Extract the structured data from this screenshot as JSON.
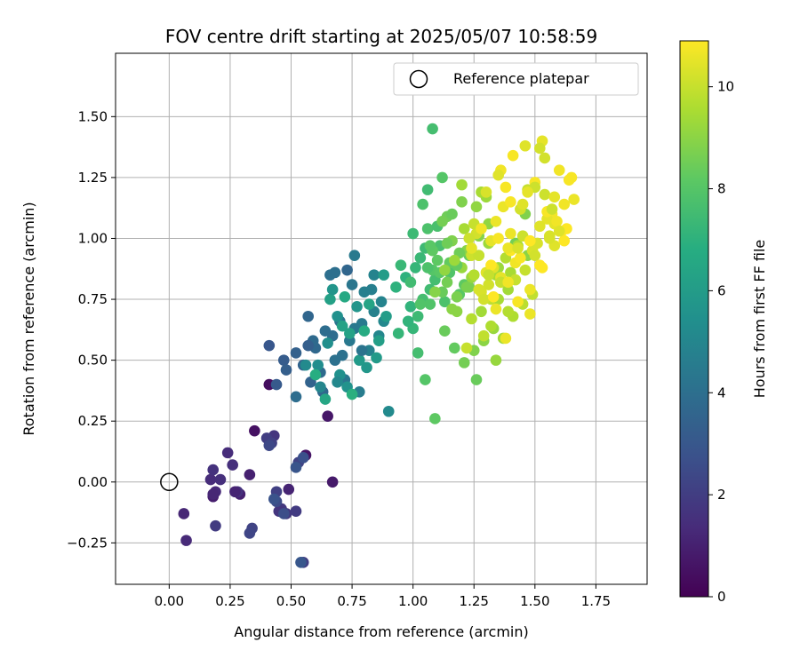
{
  "chart_data": {
    "type": "scatter",
    "title": "FOV centre drift starting at 2025/05/07 10:58:59",
    "xlabel": "Angular distance from reference (arcmin)",
    "ylabel": "Rotation from reference (arcmin)",
    "xlim": [
      -0.22,
      1.96
    ],
    "ylim": [
      -0.42,
      1.76
    ],
    "xticks": [
      0.0,
      0.25,
      0.5,
      0.75,
      1.0,
      1.25,
      1.5,
      1.75
    ],
    "xtick_labels": [
      "0.00",
      "0.25",
      "0.50",
      "0.75",
      "1.00",
      "1.25",
      "1.50",
      "1.75"
    ],
    "yticks": [
      -0.25,
      0.0,
      0.25,
      0.5,
      0.75,
      1.0,
      1.25,
      1.5
    ],
    "ytick_labels": [
      "−0.25",
      "0.00",
      "0.25",
      "0.50",
      "0.75",
      "1.00",
      "1.25",
      "1.50"
    ],
    "grid": true,
    "colormap": "viridis",
    "colorbar": {
      "label": "Hours from first FF file",
      "min": 0,
      "max": 10.9,
      "ticks": [
        0,
        2,
        4,
        6,
        8,
        10
      ],
      "tick_labels": [
        "0",
        "2",
        "4",
        "6",
        "8",
        "10"
      ]
    },
    "legend": {
      "position": "top-right",
      "entries": [
        "Reference platepar"
      ]
    },
    "reference_marker": {
      "x": 0.0,
      "y": 0.0,
      "label": "Reference platepar"
    },
    "series": [
      {
        "x": [
          0.41,
          0.35,
          0.56,
          0.65,
          0.67,
          0.18,
          0.29,
          0.33,
          0.49,
          0.06,
          0.07,
          0.19,
          0.17,
          0.24,
          0.21,
          0.26,
          0.18,
          0.28,
          0.43,
          0.46,
          0.48,
          0.52,
          0.55,
          0.4,
          0.44,
          0.42,
          0.53,
          0.34,
          0.19,
          0.33,
          0.45,
          0.41,
          0.18,
          0.27,
          0.44,
          0.47,
          0.55,
          0.43,
          0.52,
          0.54
        ],
        "y": [
          0.4,
          0.21,
          0.11,
          0.27,
          0.0,
          -0.06,
          -0.05,
          0.03,
          -0.03,
          -0.13,
          -0.24,
          -0.04,
          0.01,
          0.12,
          0.01,
          0.07,
          0.05,
          -0.04,
          0.19,
          -0.11,
          -0.13,
          -0.12,
          -0.33,
          0.18,
          -0.04,
          0.16,
          0.08,
          -0.19,
          -0.18,
          -0.21,
          -0.12,
          0.15,
          -0.05,
          -0.04,
          -0.08,
          -0.13,
          0.1,
          -0.07,
          0.06,
          -0.33
        ],
        "hours": [
          0.4,
          0.5,
          0.6,
          0.7,
          0.8,
          0.9,
          1.0,
          1.0,
          1.1,
          1.2,
          1.3,
          1.3,
          1.4,
          1.4,
          1.5,
          1.5,
          1.6,
          1.6,
          1.7,
          1.8,
          1.8,
          1.9,
          2.0,
          2.0,
          2.1,
          2.1,
          2.2,
          2.2,
          1.9,
          2.3,
          1.7,
          2.4,
          1.2,
          1.1,
          2.5,
          2.6,
          2.7,
          2.8,
          2.9,
          3.0
        ]
      },
      {
        "x": [
          0.41,
          0.44,
          0.47,
          0.48,
          0.52,
          0.55,
          0.57,
          0.6,
          0.62,
          0.64,
          0.66,
          0.68,
          0.7,
          0.72,
          0.74,
          0.76,
          0.78,
          0.8,
          0.82,
          0.84,
          0.86,
          0.88,
          0.9,
          0.58,
          0.63,
          0.67,
          0.71,
          0.75,
          0.79,
          0.83,
          0.87,
          0.61,
          0.65,
          0.69,
          0.73,
          0.77,
          0.81,
          0.85,
          0.89,
          0.59,
          0.68,
          0.76,
          0.84,
          0.56,
          0.62,
          0.7,
          0.78,
          0.86,
          0.66,
          0.74,
          0.82,
          0.64,
          0.72,
          0.8,
          0.6,
          0.73,
          0.79,
          0.69,
          0.75,
          0.88,
          0.57,
          0.52,
          0.67,
          0.71
        ],
        "y": [
          0.56,
          0.4,
          0.5,
          0.46,
          0.53,
          0.48,
          0.68,
          0.55,
          0.45,
          0.62,
          0.85,
          0.5,
          0.66,
          0.42,
          0.58,
          0.93,
          0.37,
          0.78,
          0.54,
          0.85,
          0.6,
          0.66,
          0.29,
          0.41,
          0.37,
          0.6,
          0.52,
          0.81,
          0.65,
          0.79,
          0.74,
          0.48,
          0.57,
          0.68,
          0.39,
          0.72,
          0.47,
          0.51,
          0.68,
          0.58,
          0.86,
          0.63,
          0.7,
          0.48,
          0.39,
          0.44,
          0.5,
          0.58,
          0.75,
          0.61,
          0.73,
          0.34,
          0.76,
          0.62,
          0.44,
          0.87,
          0.54,
          0.41,
          0.36,
          0.85,
          0.56,
          0.35,
          0.79,
          0.64
        ],
        "hours": [
          3.0,
          3.1,
          3.2,
          3.3,
          3.4,
          3.5,
          3.6,
          3.7,
          3.8,
          3.9,
          4.0,
          4.1,
          4.2,
          4.3,
          4.4,
          4.5,
          4.6,
          4.7,
          4.8,
          4.9,
          5.0,
          5.1,
          5.2,
          3.5,
          3.7,
          3.9,
          4.1,
          4.3,
          4.5,
          4.7,
          4.9,
          5.3,
          5.4,
          5.5,
          5.6,
          5.7,
          5.8,
          5.9,
          6.0,
          3.8,
          4.0,
          4.4,
          4.8,
          5.2,
          5.0,
          5.5,
          5.9,
          6.1,
          6.2,
          6.3,
          6.4,
          6.5,
          6.6,
          6.7,
          6.8,
          3.6,
          4.2,
          5.1,
          6.9,
          6.0,
          3.3,
          3.9,
          5.7,
          6.3
        ]
      },
      {
        "x": [
          0.97,
          0.99,
          1.01,
          1.03,
          1.05,
          1.07,
          1.09,
          1.11,
          1.13,
          1.15,
          1.17,
          1.19,
          1.21,
          1.23,
          1.0,
          1.02,
          1.04,
          1.06,
          1.08,
          1.1,
          1.12,
          1.14,
          1.16,
          1.18,
          1.2,
          0.93,
          0.95,
          0.98,
          1.06,
          1.1,
          1.14,
          1.18,
          1.22,
          1.26,
          1.3,
          1.34,
          1.38,
          1.42,
          1.46,
          1.07,
          1.11,
          1.15,
          1.19,
          1.23,
          1.27,
          1.31,
          1.35,
          1.39,
          1.43,
          1.47,
          1.05,
          1.09,
          1.13,
          1.17,
          1.21,
          1.25,
          1.29,
          1.33,
          1.37,
          1.41,
          1.45,
          1.49,
          1.08,
          1.12,
          1.16,
          1.2,
          1.24,
          1.28,
          1.32,
          1.36,
          1.4,
          0.94,
          1.0,
          1.04,
          1.08,
          1.12,
          1.16,
          1.2,
          1.24,
          1.28,
          1.32,
          1.26,
          1.34,
          1.06,
          1.07,
          1.03,
          0.99,
          1.18,
          1.22,
          1.27,
          1.31,
          1.35,
          1.39,
          1.02,
          1.14,
          1.09,
          1.13,
          1.17,
          1.21,
          1.25,
          1.29
        ],
        "y": [
          0.84,
          0.72,
          0.88,
          0.92,
          0.96,
          0.79,
          0.83,
          0.97,
          0.74,
          0.86,
          0.9,
          0.77,
          0.81,
          0.93,
          0.63,
          0.68,
          0.75,
          1.04,
          0.87,
          0.91,
          0.78,
          0.82,
          0.99,
          0.7,
          0.88,
          0.8,
          0.89,
          0.66,
          1.2,
          1.05,
          1.09,
          0.76,
          0.95,
          1.13,
          1.17,
          0.85,
          0.92,
          0.98,
          1.1,
          0.73,
          0.86,
          0.9,
          0.94,
          0.8,
          1.01,
          1.06,
          0.88,
          0.79,
          0.97,
          0.93,
          0.42,
          0.26,
          0.62,
          0.55,
          0.49,
          0.54,
          0.58,
          0.63,
          0.59,
          0.68,
          0.73,
          0.77,
          1.45,
          1.25,
          1.1,
          1.15,
          0.84,
          0.7,
          0.64,
          0.82,
          0.86,
          0.61,
          1.02,
          1.14,
          0.95,
          1.07,
          0.71,
          1.22,
          0.67,
          1.19,
          0.75,
          0.42,
          0.5,
          0.88,
          0.97,
          0.73,
          0.82,
          0.89,
          0.8,
          0.93,
          0.98,
          0.75,
          0.7,
          0.53,
          0.98,
          0.78,
          0.87,
          0.91,
          1.04,
          0.85,
          0.6
        ],
        "hours": [
          7.0,
          7.1,
          7.2,
          7.3,
          7.4,
          7.5,
          7.6,
          7.7,
          7.8,
          7.9,
          8.0,
          8.1,
          8.2,
          8.3,
          7.2,
          7.4,
          7.6,
          7.8,
          8.0,
          8.2,
          8.4,
          8.6,
          8.8,
          9.0,
          9.2,
          7.0,
          7.3,
          7.1,
          7.5,
          7.7,
          8.5,
          8.7,
          8.9,
          9.1,
          9.3,
          9.5,
          9.7,
          8.6,
          8.8,
          7.9,
          8.1,
          8.3,
          8.5,
          8.7,
          8.9,
          9.1,
          9.3,
          9.4,
          9.6,
          9.0,
          8.0,
          8.2,
          8.4,
          8.3,
          8.6,
          8.8,
          9.0,
          9.2,
          9.4,
          9.6,
          9.8,
          9.9,
          7.6,
          8.0,
          8.4,
          8.8,
          9.2,
          9.4,
          9.6,
          9.8,
          9.5,
          7.2,
          7.4,
          7.8,
          8.2,
          8.6,
          9.0,
          9.4,
          9.7,
          9.5,
          9.9,
          8.4,
          9.2,
          7.8,
          8.1,
          7.9,
          7.5,
          8.3,
          8.7,
          9.1,
          9.3,
          9.5,
          9.7,
          7.6,
          8.5,
          8.9,
          9.1,
          9.3,
          9.5,
          9.7,
          9.9
        ]
      },
      {
        "x": [
          1.22,
          1.24,
          1.26,
          1.28,
          1.3,
          1.32,
          1.34,
          1.36,
          1.38,
          1.4,
          1.42,
          1.44,
          1.46,
          1.48,
          1.5,
          1.52,
          1.54,
          1.56,
          1.58,
          1.6,
          1.62,
          1.64,
          1.66,
          1.25,
          1.29,
          1.33,
          1.37,
          1.41,
          1.45,
          1.49,
          1.53,
          1.57,
          1.61,
          1.65,
          1.27,
          1.31,
          1.35,
          1.39,
          1.43,
          1.47,
          1.51,
          1.55,
          1.59,
          1.63,
          1.23,
          1.3,
          1.36,
          1.42,
          1.48,
          1.54,
          1.6,
          1.34,
          1.4,
          1.46,
          1.52,
          1.58,
          1.38,
          1.44,
          1.5,
          1.56,
          1.24,
          1.28,
          1.32,
          1.36,
          1.52,
          1.48,
          1.55,
          1.5,
          1.45,
          1.4,
          1.35,
          1.31,
          1.27,
          1.58,
          1.62,
          1.53,
          1.57,
          1.43,
          1.47,
          1.39,
          1.33
        ],
        "y": [
          0.55,
          0.93,
          1.02,
          0.78,
          0.86,
          0.99,
          1.07,
          1.28,
          1.21,
          0.95,
          0.83,
          1.12,
          1.38,
          0.79,
          1.23,
          0.89,
          1.18,
          1.01,
          1.06,
          1.28,
          0.99,
          1.24,
          1.16,
          1.06,
          0.75,
          0.88,
          1.13,
          1.34,
          1.01,
          0.95,
          1.4,
          1.1,
          1.03,
          1.25,
          0.93,
          0.81,
          1.26,
          0.96,
          0.74,
          1.2,
          0.98,
          1.08,
          1.07,
          1.04,
          1.0,
          1.19,
          0.84,
          0.9,
          0.99,
          1.33,
          1.03,
          0.71,
          1.15,
          0.87,
          1.37,
          0.97,
          0.59,
          0.92,
          1.21,
          1.0,
          0.96,
          1.04,
          0.89,
          0.82,
          1.05,
          0.69,
          1.11,
          0.93,
          1.14,
          1.02,
          1.0,
          0.85,
          0.79,
          1.17,
          1.14,
          0.88,
          1.12,
          0.96,
          1.19,
          0.82,
          0.76
        ],
        "hours": [
          10.0,
          10.1,
          10.2,
          10.3,
          10.4,
          10.5,
          10.6,
          10.7,
          10.8,
          10.9,
          10.0,
          10.2,
          10.4,
          10.6,
          10.8,
          10.9,
          10.1,
          10.3,
          10.5,
          10.7,
          10.9,
          10.8,
          10.6,
          10.0,
          10.2,
          10.4,
          10.6,
          10.8,
          10.1,
          10.3,
          10.5,
          10.7,
          10.9,
          10.8,
          10.0,
          10.2,
          10.4,
          10.6,
          10.8,
          10.0,
          10.3,
          10.5,
          10.7,
          10.9,
          10.1,
          10.3,
          10.5,
          10.7,
          10.9,
          10.2,
          10.4,
          10.6,
          10.8,
          10.0,
          10.2,
          10.4,
          10.6,
          10.8,
          10.1,
          10.3,
          10.5,
          10.7,
          10.9,
          10.0,
          10.4,
          10.6,
          10.8,
          10.2,
          10.4,
          10.6,
          10.8,
          10.0,
          10.3,
          10.5,
          10.7,
          10.9,
          10.1,
          10.3,
          10.5,
          10.7,
          10.9
        ]
      }
    ]
  }
}
